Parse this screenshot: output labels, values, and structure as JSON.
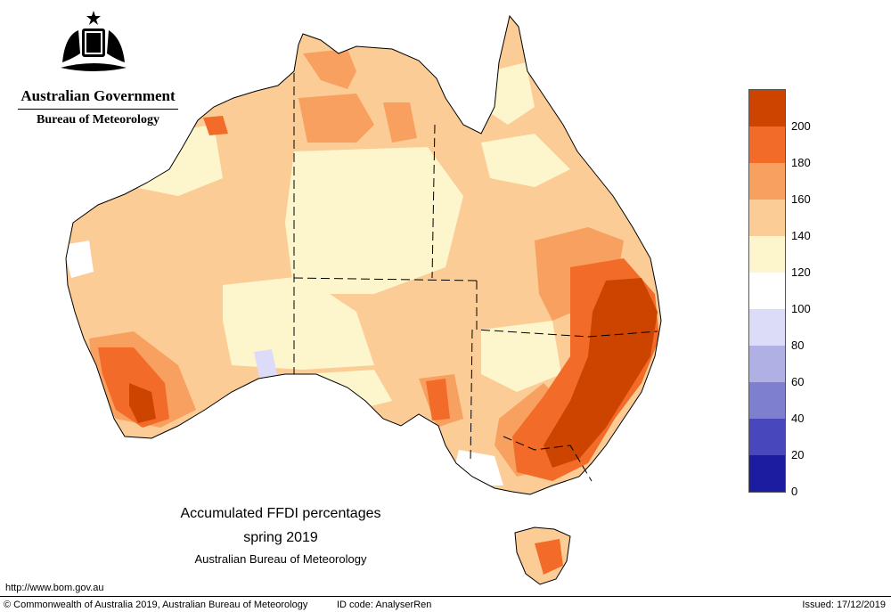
{
  "header": {
    "org_line1": "Australian Government",
    "org_line2": "Bureau of Meteorology"
  },
  "map": {
    "title": "Accumulated FFDI percentages",
    "period": "spring 2019",
    "source": "Australian Bureau of Meteorology",
    "regions_drawn": [
      "Western Australia",
      "Northern Territory",
      "Queensland",
      "South Australia",
      "New South Wales",
      "Victoria",
      "Tasmania"
    ]
  },
  "legend": {
    "unit": "percent",
    "ticks": [
      "200",
      "180",
      "160",
      "140",
      "120",
      "100",
      "80",
      "60",
      "40",
      "20",
      "0"
    ],
    "bands": [
      {
        "min": 200,
        "max": 220,
        "color": "#cc4400"
      },
      {
        "min": 180,
        "max": 200,
        "color": "#f26b28"
      },
      {
        "min": 160,
        "max": 180,
        "color": "#f8a060"
      },
      {
        "min": 140,
        "max": 160,
        "color": "#fbcc96"
      },
      {
        "min": 120,
        "max": 140,
        "color": "#fdf6cc"
      },
      {
        "min": 100,
        "max": 120,
        "color": "#ffffff"
      },
      {
        "min": 80,
        "max": 100,
        "color": "#dcdcf8"
      },
      {
        "min": 60,
        "max": 80,
        "color": "#b0b0e4"
      },
      {
        "min": 40,
        "max": 60,
        "color": "#7f7fd0"
      },
      {
        "min": 20,
        "max": 40,
        "color": "#4848bc"
      },
      {
        "min": 0,
        "max": 20,
        "color": "#1c1ca0"
      }
    ]
  },
  "footer": {
    "url": "http://www.bom.gov.au",
    "copyright": "© Commonwealth of Australia 2019, Australian Bureau of Meteorology",
    "id_code": "ID code: AnalyserRen",
    "issued": "Issued: 17/12/2019"
  }
}
